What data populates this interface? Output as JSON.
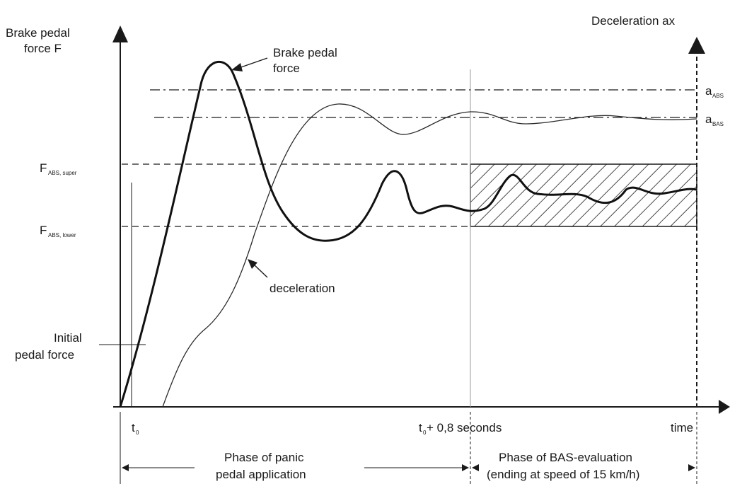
{
  "labels": {
    "y_axis_line1": "Brake pedal",
    "y_axis_line2": "force F",
    "right_axis": "Deceleration ax",
    "curve_force_line1": "Brake pedal",
    "curve_force_line2": "force",
    "curve_decel": "deceleration",
    "f_abs_super_main": "F",
    "f_abs_super_sub": "ABS, super",
    "f_abs_lower_main": "F",
    "f_abs_lower_sub": "ABS, lower",
    "a_abs_main": "a",
    "a_abs_sub": "ABS",
    "a_bas_main": "a",
    "a_bas_sub": "BAS",
    "initial_line1": "Initial",
    "initial_line2": "pedal force",
    "t0_main": "t",
    "t0_sub": "0",
    "t08_main": "t",
    "t08_sub": "0",
    "t08_rest": " + 0,8 seconds",
    "time": "time",
    "phase1_line1": "Phase of panic",
    "phase1_line2": "pedal application",
    "phase2_line1": "Phase of BAS-evaluation",
    "phase2_line2": "(ending at speed of 15 km/h)"
  },
  "colors": {
    "ink": "#1a1a1a",
    "grey_line": "#9a9a9a",
    "background": "#ffffff"
  }
}
